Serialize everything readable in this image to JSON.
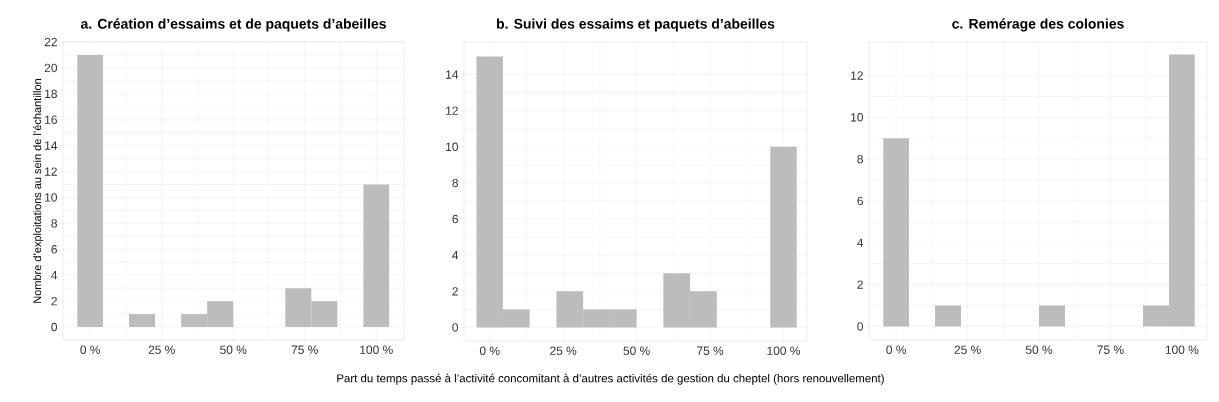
{
  "chart_data": [
    {
      "type": "histogram",
      "title": "a. Création d’essaims et de paquets d’abeilles",
      "ylabel": "Nombre d’exploitations au sein de l’échantillon",
      "color": "#bdbcbb",
      "bins": [
        -4.5,
        4.5,
        13.6,
        22.7,
        31.8,
        40.9,
        50,
        59.1,
        68.2,
        77.3,
        86.4,
        95.5,
        104.5
      ],
      "values": [
        21,
        0,
        1,
        0,
        1,
        2,
        0,
        0,
        3,
        2,
        0,
        11
      ],
      "xlim": [
        -9.5,
        109.7
      ],
      "ylim": [
        -1,
        22
      ],
      "grid": true,
      "xticks": [
        {
          "value": 0,
          "label": "0 %"
        },
        {
          "value": 25,
          "label": "25 %"
        },
        {
          "value": 50,
          "label": "50 %"
        },
        {
          "value": 75,
          "label": "75 %"
        },
        {
          "value": 100,
          "label": "100 %"
        }
      ],
      "yticks": [
        0,
        2,
        4,
        6,
        8,
        10,
        12,
        14,
        16,
        18,
        20,
        22
      ]
    },
    {
      "type": "histogram",
      "title": "b. Suivi des essaims et paquets d’abeilles",
      "xlabel": "Part du temps passé à l’activité concomitant à d’autres activités de gestion du cheptel (hors renouvellement)",
      "color": "#bdbcbb",
      "bins": [
        -4.5,
        4.5,
        13.6,
        22.7,
        31.8,
        40.9,
        50,
        59.1,
        68.2,
        77.3,
        86.4,
        95.5,
        104.5
      ],
      "values": [
        15,
        1,
        0,
        2,
        1,
        1,
        0,
        3,
        2,
        0,
        0,
        10
      ],
      "xlim": [
        -8.75,
        108
      ],
      "ylim": [
        -0.75,
        15.8
      ],
      "grid": true,
      "xticks": [
        {
          "value": 0,
          "label": "0 %"
        },
        {
          "value": 25,
          "label": "25 %"
        },
        {
          "value": 50,
          "label": "50 %"
        },
        {
          "value": 75,
          "label": "75 %"
        },
        {
          "value": 100,
          "label": "100 %"
        }
      ],
      "yticks": [
        0,
        2,
        4,
        6,
        8,
        10,
        12,
        14
      ]
    },
    {
      "type": "histogram",
      "title": "c. Remérage des colonies",
      "color": "#bdbcbb",
      "bins": [
        -4.5,
        4.5,
        13.6,
        22.7,
        31.8,
        40.9,
        50,
        59.1,
        68.2,
        77.3,
        86.4,
        95.5,
        104.5
      ],
      "values": [
        9,
        0,
        1,
        0,
        0,
        0,
        1,
        0,
        0,
        0,
        1,
        13
      ],
      "xlim": [
        -9.5,
        108.8
      ],
      "ylim": [
        -0.65,
        13.6
      ],
      "grid": true,
      "xticks": [
        {
          "value": 0,
          "label": "0 %"
        },
        {
          "value": 25,
          "label": "25 %"
        },
        {
          "value": 50,
          "label": "50 %"
        },
        {
          "value": 75,
          "label": "75 %"
        },
        {
          "value": 100,
          "label": "100 %"
        }
      ],
      "yticks": [
        0,
        2,
        4,
        6,
        8,
        10,
        12
      ]
    }
  ]
}
